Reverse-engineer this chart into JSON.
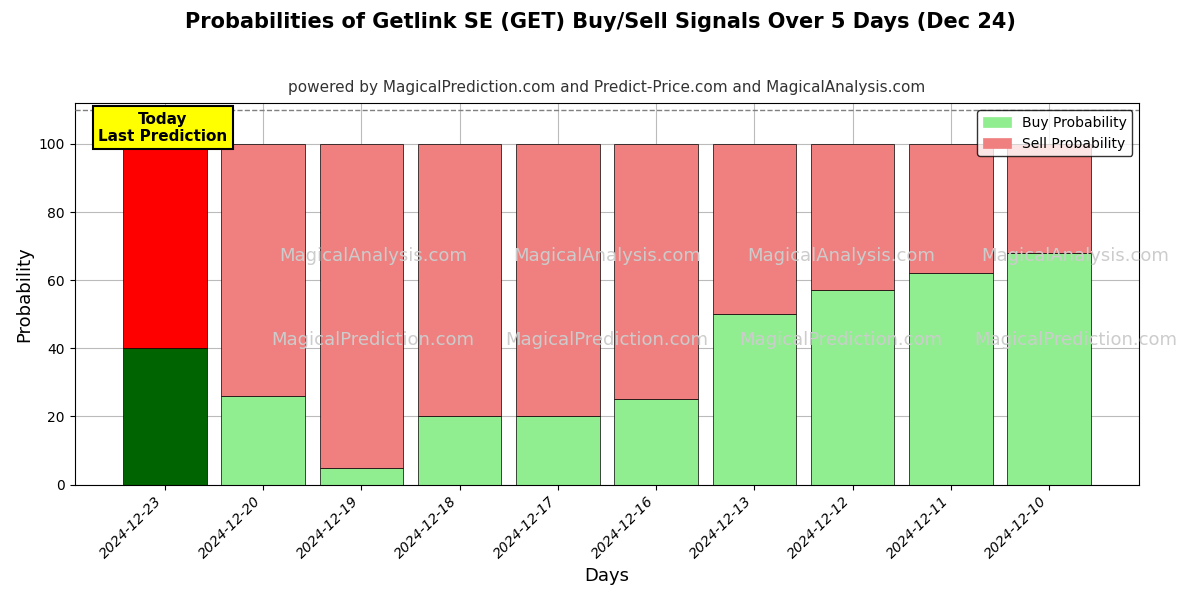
{
  "title": "Probabilities of Getlink SE (GET) Buy/Sell Signals Over 5 Days (Dec 24)",
  "subtitle": "powered by MagicalPrediction.com and Predict-Price.com and MagicalAnalysis.com",
  "xlabel": "Days",
  "ylabel": "Probability",
  "dates": [
    "2024-12-23",
    "2024-12-20",
    "2024-12-19",
    "2024-12-18",
    "2024-12-17",
    "2024-12-16",
    "2024-12-13",
    "2024-12-12",
    "2024-12-11",
    "2024-12-10"
  ],
  "buy_values": [
    40,
    26,
    5,
    20,
    20,
    25,
    50,
    57,
    62,
    68
  ],
  "sell_values": [
    60,
    74,
    95,
    80,
    80,
    75,
    50,
    43,
    38,
    32
  ],
  "buy_color_today": "#006400",
  "sell_color_today": "#FF0000",
  "buy_color_normal": "#90EE90",
  "sell_color_normal": "#F08080",
  "bar_edge_color": "#000000",
  "bar_edge_width": 0.5,
  "ylim": [
    0,
    112
  ],
  "yticks": [
    0,
    20,
    40,
    60,
    80,
    100
  ],
  "dashed_line_y": 110,
  "legend_buy_label": "Buy Probability",
  "legend_sell_label": "Sell Probability",
  "today_label_text": "Today\nLast Prediction",
  "background_color": "#ffffff",
  "grid_color": "#bbbbbb",
  "watermark_lines": [
    "MagicalAnalysis.com",
    "MagicalPrediction.com"
  ],
  "watermark_color": "#cccccc",
  "watermark_fontsize": 13,
  "title_fontsize": 15,
  "subtitle_fontsize": 11
}
